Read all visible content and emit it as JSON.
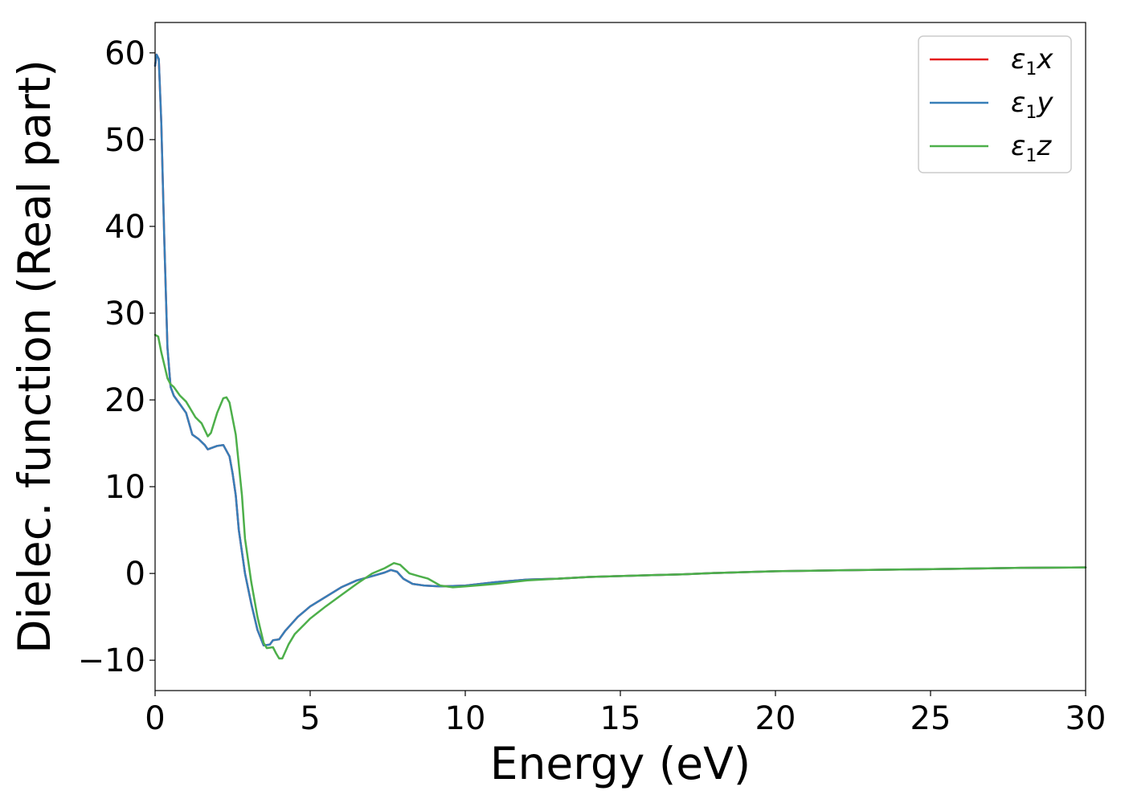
{
  "chart_data": {
    "type": "line",
    "xlabel": "Energy (eV)",
    "ylabel": "Dielec. function (Real part)",
    "xlim": [
      0,
      30
    ],
    "ylim": [
      -13.5,
      63.5
    ],
    "xticks": [
      0,
      5,
      10,
      15,
      20,
      25,
      30
    ],
    "xtick_labels": [
      "0",
      "5",
      "10",
      "15",
      "20",
      "25",
      "30"
    ],
    "yticks": [
      -10,
      0,
      10,
      20,
      30,
      40,
      50,
      60
    ],
    "ytick_labels": [
      "−10",
      "0",
      "10",
      "20",
      "30",
      "40",
      "50",
      "60"
    ],
    "grid": false,
    "legend_position": "top-right",
    "series": [
      {
        "name": "ε₁x",
        "legend_main": "ε",
        "legend_sub": "1",
        "legend_var": "x",
        "color": "#e41a1c",
        "points": [
          [
            0,
            58.5
          ],
          [
            0.05,
            59.8
          ],
          [
            0.12,
            59.3
          ],
          [
            0.2,
            52
          ],
          [
            0.3,
            38
          ],
          [
            0.4,
            26
          ],
          [
            0.5,
            21.5
          ],
          [
            0.6,
            20.5
          ],
          [
            0.8,
            19.5
          ],
          [
            1.0,
            18.5
          ],
          [
            1.2,
            16
          ],
          [
            1.4,
            15.5
          ],
          [
            1.6,
            14.8
          ],
          [
            1.7,
            14.3
          ],
          [
            2.0,
            14.7
          ],
          [
            2.2,
            14.8
          ],
          [
            2.4,
            13.5
          ],
          [
            2.5,
            11.5
          ],
          [
            2.6,
            9
          ],
          [
            2.7,
            5
          ],
          [
            2.9,
            0
          ],
          [
            3.1,
            -3.5
          ],
          [
            3.3,
            -6.5
          ],
          [
            3.5,
            -8.3
          ],
          [
            3.7,
            -8.2
          ],
          [
            3.8,
            -7.7
          ],
          [
            4.0,
            -7.6
          ],
          [
            4.2,
            -6.6
          ],
          [
            4.6,
            -5
          ],
          [
            5.0,
            -3.8
          ],
          [
            5.5,
            -2.7
          ],
          [
            6.0,
            -1.6
          ],
          [
            6.5,
            -0.8
          ],
          [
            7.0,
            -0.3
          ],
          [
            7.4,
            0.1
          ],
          [
            7.6,
            0.4
          ],
          [
            7.8,
            0.2
          ],
          [
            8.0,
            -0.6
          ],
          [
            8.3,
            -1.2
          ],
          [
            8.7,
            -1.4
          ],
          [
            9.2,
            -1.5
          ],
          [
            10,
            -1.4
          ],
          [
            11,
            -1.0
          ],
          [
            12,
            -0.7
          ],
          [
            13,
            -0.6
          ],
          [
            14,
            -0.4
          ],
          [
            15,
            -0.3
          ],
          [
            16,
            -0.2
          ],
          [
            17,
            -0.1
          ],
          [
            18,
            0.05
          ],
          [
            19,
            0.15
          ],
          [
            20,
            0.25
          ],
          [
            22,
            0.35
          ],
          [
            24,
            0.45
          ],
          [
            26,
            0.55
          ],
          [
            28,
            0.65
          ],
          [
            30,
            0.7
          ]
        ]
      },
      {
        "name": "ε₁y",
        "legend_main": "ε",
        "legend_sub": "1",
        "legend_var": "y",
        "color": "#377eb8",
        "points": [
          [
            0,
            58.5
          ],
          [
            0.05,
            59.8
          ],
          [
            0.12,
            59.3
          ],
          [
            0.2,
            52
          ],
          [
            0.3,
            38
          ],
          [
            0.4,
            26
          ],
          [
            0.5,
            21.5
          ],
          [
            0.6,
            20.5
          ],
          [
            0.8,
            19.5
          ],
          [
            1.0,
            18.5
          ],
          [
            1.2,
            16
          ],
          [
            1.4,
            15.5
          ],
          [
            1.6,
            14.8
          ],
          [
            1.7,
            14.3
          ],
          [
            2.0,
            14.7
          ],
          [
            2.2,
            14.8
          ],
          [
            2.4,
            13.5
          ],
          [
            2.5,
            11.5
          ],
          [
            2.6,
            9
          ],
          [
            2.7,
            5
          ],
          [
            2.9,
            0
          ],
          [
            3.1,
            -3.5
          ],
          [
            3.3,
            -6.5
          ],
          [
            3.5,
            -8.3
          ],
          [
            3.7,
            -8.2
          ],
          [
            3.8,
            -7.7
          ],
          [
            4.0,
            -7.6
          ],
          [
            4.2,
            -6.6
          ],
          [
            4.6,
            -5
          ],
          [
            5.0,
            -3.8
          ],
          [
            5.5,
            -2.7
          ],
          [
            6.0,
            -1.6
          ],
          [
            6.5,
            -0.8
          ],
          [
            7.0,
            -0.3
          ],
          [
            7.4,
            0.1
          ],
          [
            7.6,
            0.4
          ],
          [
            7.8,
            0.2
          ],
          [
            8.0,
            -0.6
          ],
          [
            8.3,
            -1.2
          ],
          [
            8.7,
            -1.4
          ],
          [
            9.2,
            -1.5
          ],
          [
            10,
            -1.4
          ],
          [
            11,
            -1.0
          ],
          [
            12,
            -0.7
          ],
          [
            13,
            -0.6
          ],
          [
            14,
            -0.4
          ],
          [
            15,
            -0.3
          ],
          [
            16,
            -0.2
          ],
          [
            17,
            -0.1
          ],
          [
            18,
            0.05
          ],
          [
            19,
            0.15
          ],
          [
            20,
            0.25
          ],
          [
            22,
            0.35
          ],
          [
            24,
            0.45
          ],
          [
            26,
            0.55
          ],
          [
            28,
            0.65
          ],
          [
            30,
            0.7
          ]
        ]
      },
      {
        "name": "ε₁z",
        "legend_main": "ε",
        "legend_sub": "1",
        "legend_var": "z",
        "color": "#4daf4a",
        "points": [
          [
            0,
            27.5
          ],
          [
            0.1,
            27.3
          ],
          [
            0.2,
            25.5
          ],
          [
            0.3,
            24
          ],
          [
            0.4,
            22.5
          ],
          [
            0.5,
            21.8
          ],
          [
            0.6,
            21.5
          ],
          [
            0.8,
            20.5
          ],
          [
            1.0,
            19.8
          ],
          [
            1.1,
            19.2
          ],
          [
            1.3,
            18
          ],
          [
            1.5,
            17.3
          ],
          [
            1.7,
            15.8
          ],
          [
            1.8,
            16.2
          ],
          [
            2.0,
            18.5
          ],
          [
            2.2,
            20.2
          ],
          [
            2.3,
            20.3
          ],
          [
            2.4,
            19.7
          ],
          [
            2.6,
            16
          ],
          [
            2.8,
            9
          ],
          [
            2.9,
            4
          ],
          [
            3.1,
            -1
          ],
          [
            3.3,
            -5
          ],
          [
            3.5,
            -8
          ],
          [
            3.6,
            -8.6
          ],
          [
            3.8,
            -8.5
          ],
          [
            3.9,
            -9.2
          ],
          [
            4.0,
            -9.8
          ],
          [
            4.1,
            -9.8
          ],
          [
            4.3,
            -8.2
          ],
          [
            4.5,
            -7
          ],
          [
            5.0,
            -5.2
          ],
          [
            5.5,
            -3.8
          ],
          [
            6.0,
            -2.5
          ],
          [
            6.5,
            -1.2
          ],
          [
            7.0,
            0
          ],
          [
            7.4,
            0.6
          ],
          [
            7.7,
            1.2
          ],
          [
            7.9,
            1.0
          ],
          [
            8.2,
            0
          ],
          [
            8.5,
            -0.3
          ],
          [
            8.8,
            -0.6
          ],
          [
            9.2,
            -1.4
          ],
          [
            9.6,
            -1.6
          ],
          [
            10,
            -1.5
          ],
          [
            11,
            -1.2
          ],
          [
            12,
            -0.8
          ],
          [
            13,
            -0.6
          ],
          [
            14,
            -0.4
          ],
          [
            15,
            -0.3
          ],
          [
            16,
            -0.2
          ],
          [
            17,
            -0.1
          ],
          [
            18,
            0.05
          ],
          [
            19,
            0.15
          ],
          [
            20,
            0.25
          ],
          [
            22,
            0.35
          ],
          [
            24,
            0.45
          ],
          [
            26,
            0.55
          ],
          [
            28,
            0.65
          ],
          [
            30,
            0.7
          ]
        ]
      }
    ]
  }
}
